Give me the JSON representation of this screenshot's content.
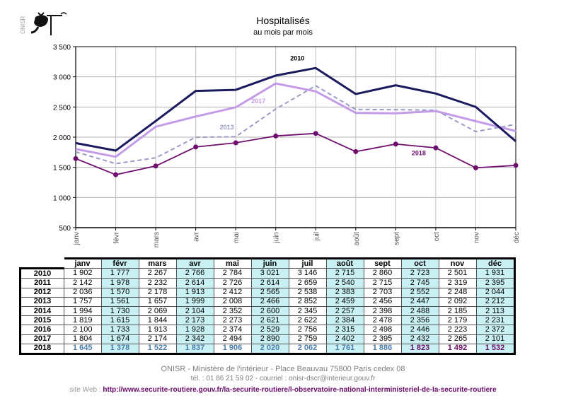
{
  "header": {
    "logo_text": "ONISR",
    "title": "Hospitalisés",
    "subtitle": "au mois par mois"
  },
  "colors": {
    "2010": "#1a1a5e",
    "2013": "#9a9ac8",
    "2017": "#c39be6",
    "2018": "#6e0f6e",
    "table_alt": "#c9f1f4",
    "table_2018_first": "#4a7fb0",
    "table_2018_last": "#6e0f6e"
  },
  "chart_data": {
    "type": "line",
    "title": "Hospitalisés",
    "subtitle": "au mois par mois",
    "x": [
      "janv",
      "févr",
      "mars",
      "avr",
      "mai",
      "juin",
      "juil",
      "août",
      "sept",
      "oct",
      "nov",
      "déc"
    ],
    "ylim": [
      500,
      3500
    ],
    "yticks": [
      500,
      1000,
      1500,
      2000,
      2500,
      3000,
      3500
    ],
    "ytick_labels": [
      "500",
      "1 000",
      "1 500",
      "2 000",
      "2 500",
      "3 000",
      "3 500"
    ],
    "grid": true,
    "series": [
      {
        "name": "2010",
        "style": "solid-thick",
        "label": "2010",
        "values": [
          1902,
          1777,
          2267,
          2766,
          2784,
          3021,
          3146,
          2715,
          2860,
          2723,
          2501,
          1931
        ]
      },
      {
        "name": "2013",
        "style": "dashed",
        "label": "2013",
        "values": [
          1757,
          1561,
          1657,
          1999,
          2008,
          2466,
          2852,
          2459,
          2456,
          2447,
          2092,
          2212
        ]
      },
      {
        "name": "2017",
        "style": "solid-thick",
        "label": "2017",
        "values": [
          1804,
          1674,
          2174,
          2342,
          2494,
          2890,
          2759,
          2402,
          2395,
          2432,
          2265,
          2101
        ]
      },
      {
        "name": "2018",
        "style": "solid-markers",
        "label": "2018",
        "values": [
          1645,
          1378,
          1522,
          1837,
          1906,
          2020,
          2062,
          1761,
          1886,
          1823,
          1492,
          1532
        ]
      }
    ]
  },
  "table": {
    "months": [
      "janv",
      "févr",
      "mars",
      "avr",
      "mai",
      "juin",
      "juil",
      "août",
      "sept",
      "oct",
      "nov",
      "déc"
    ],
    "rows": [
      {
        "year": "2010",
        "values": [
          "1 902",
          "1 777",
          "2 267",
          "2 766",
          "2 784",
          "3 021",
          "3 146",
          "2 715",
          "2 860",
          "2 723",
          "2 501",
          "1 931"
        ]
      },
      {
        "year": "2011",
        "values": [
          "2 142",
          "1 978",
          "2 232",
          "2 614",
          "2 726",
          "2 614",
          "2 659",
          "2 540",
          "2 715",
          "2 745",
          "2 319",
          "2 395"
        ]
      },
      {
        "year": "2012",
        "values": [
          "2 036",
          "1 570",
          "2 178",
          "1 913",
          "2 412",
          "2 565",
          "2 538",
          "2 383",
          "2 703",
          "2 552",
          "2 248",
          "2 044"
        ]
      },
      {
        "year": "2013",
        "values": [
          "1 757",
          "1 561",
          "1 657",
          "1 999",
          "2 008",
          "2 466",
          "2 852",
          "2 459",
          "2 456",
          "2 447",
          "2 092",
          "2 212"
        ]
      },
      {
        "year": "2014",
        "values": [
          "1 994",
          "1 730",
          "2 069",
          "2 104",
          "2 352",
          "2 600",
          "2 345",
          "2 257",
          "2 398",
          "2 488",
          "2 185",
          "2 113"
        ]
      },
      {
        "year": "2015",
        "values": [
          "1 819",
          "1 615",
          "1 844",
          "2 173",
          "2 273",
          "2 621",
          "2 622",
          "2 384",
          "2 478",
          "2 356",
          "2 179",
          "2 231"
        ]
      },
      {
        "year": "2016",
        "values": [
          "2 100",
          "1 733",
          "1 913",
          "1 928",
          "2 374",
          "2 529",
          "2 756",
          "2 315",
          "2 498",
          "2 446",
          "2 223",
          "2 372"
        ]
      },
      {
        "year": "2017",
        "values": [
          "1 804",
          "1 674",
          "2 174",
          "2 342",
          "2 494",
          "2 890",
          "2 759",
          "2 402",
          "2 395",
          "2 432",
          "2 265",
          "2 101"
        ]
      },
      {
        "year": "2018",
        "values": [
          "1 645",
          "1 378",
          "1 522",
          "1 837",
          "1 906",
          "2 020",
          "2 062",
          "1 761",
          "1 886",
          "1 823",
          "1 492",
          "1 532"
        ]
      }
    ]
  },
  "footer": {
    "address": "ONISR - Ministère de l'intérieur - Place Beauvau 75800 Paris cedex 08",
    "contact": "tél. : 01 86 21 59 02 - courriel : onisr-dscr@interieur.gouv.fr",
    "site_label": "site Web : ",
    "site_url": "http://www.securite-routiere.gouv.fr/la-securite-routiere/l-observatoire-national-interministeriel-de-la-securite-routiere"
  }
}
